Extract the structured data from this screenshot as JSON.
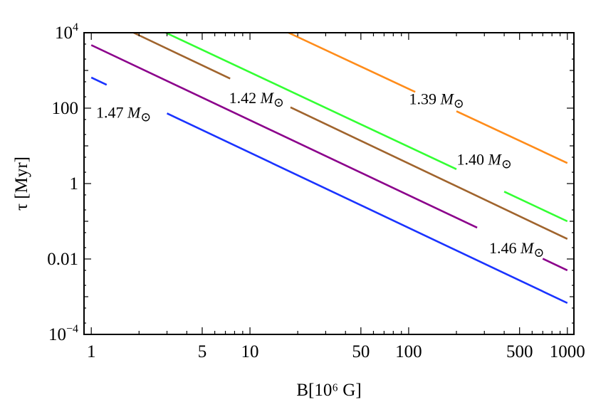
{
  "chart_data": {
    "type": "line",
    "xscale": "log",
    "yscale": "log",
    "xlim": [
      0.9,
      1100
    ],
    "ylim": [
      0.0001,
      10000
    ],
    "xlabel": "B[10⁶ G]",
    "ylabel": "τ [Myr]",
    "grid": false,
    "x_ticks": [
      {
        "value": 1,
        "label": "1"
      },
      {
        "value": 5,
        "label": "5"
      },
      {
        "value": 10,
        "label": "10"
      },
      {
        "value": 50,
        "label": "50"
      },
      {
        "value": 100,
        "label": "100"
      },
      {
        "value": 500,
        "label": "500"
      },
      {
        "value": 1000,
        "label": "1000"
      }
    ],
    "y_ticks": [
      {
        "value": 0.0001,
        "base": "10",
        "exp": "−4"
      },
      {
        "value": 0.01,
        "base": "0.01",
        "exp": ""
      },
      {
        "value": 1,
        "base": "1",
        "exp": ""
      },
      {
        "value": 100,
        "base": "100",
        "exp": ""
      },
      {
        "value": 10000,
        "base": "10",
        "exp": "4"
      }
    ],
    "series": [
      {
        "label": "1.39",
        "color": "#ff8c1a",
        "x": [
          17.5,
          1000
        ],
        "y": [
          10000,
          3.5
        ],
        "label_at": [
          150,
          180
        ],
        "gap": [
          110,
          200
        ]
      },
      {
        "label": "1.40",
        "color": "#33ff33",
        "x": [
          2.95,
          1000
        ],
        "y": [
          10000,
          0.1
        ],
        "label_at": [
          300,
          4.5
        ],
        "gap": [
          200,
          400
        ]
      },
      {
        "label": "1.42",
        "color": "#a0642d",
        "x": [
          1.85,
          1000
        ],
        "y": [
          10000,
          0.034
        ],
        "label_at": [
          11,
          190
        ],
        "gap": [
          7.5,
          18
        ]
      },
      {
        "label": "1.46",
        "color": "#8b008b",
        "x": [
          1,
          1000
        ],
        "y": [
          4700,
          0.005
        ],
        "label_at": [
          480,
          0.02
        ],
        "gap": [
          270,
          700
        ]
      },
      {
        "label": "1.47",
        "color": "#1a33ff",
        "x": [
          1,
          1000
        ],
        "y": [
          650,
          0.00068
        ],
        "label_at": [
          1.6,
          78
        ],
        "gap": [
          1.25,
          3.0
        ]
      }
    ]
  }
}
